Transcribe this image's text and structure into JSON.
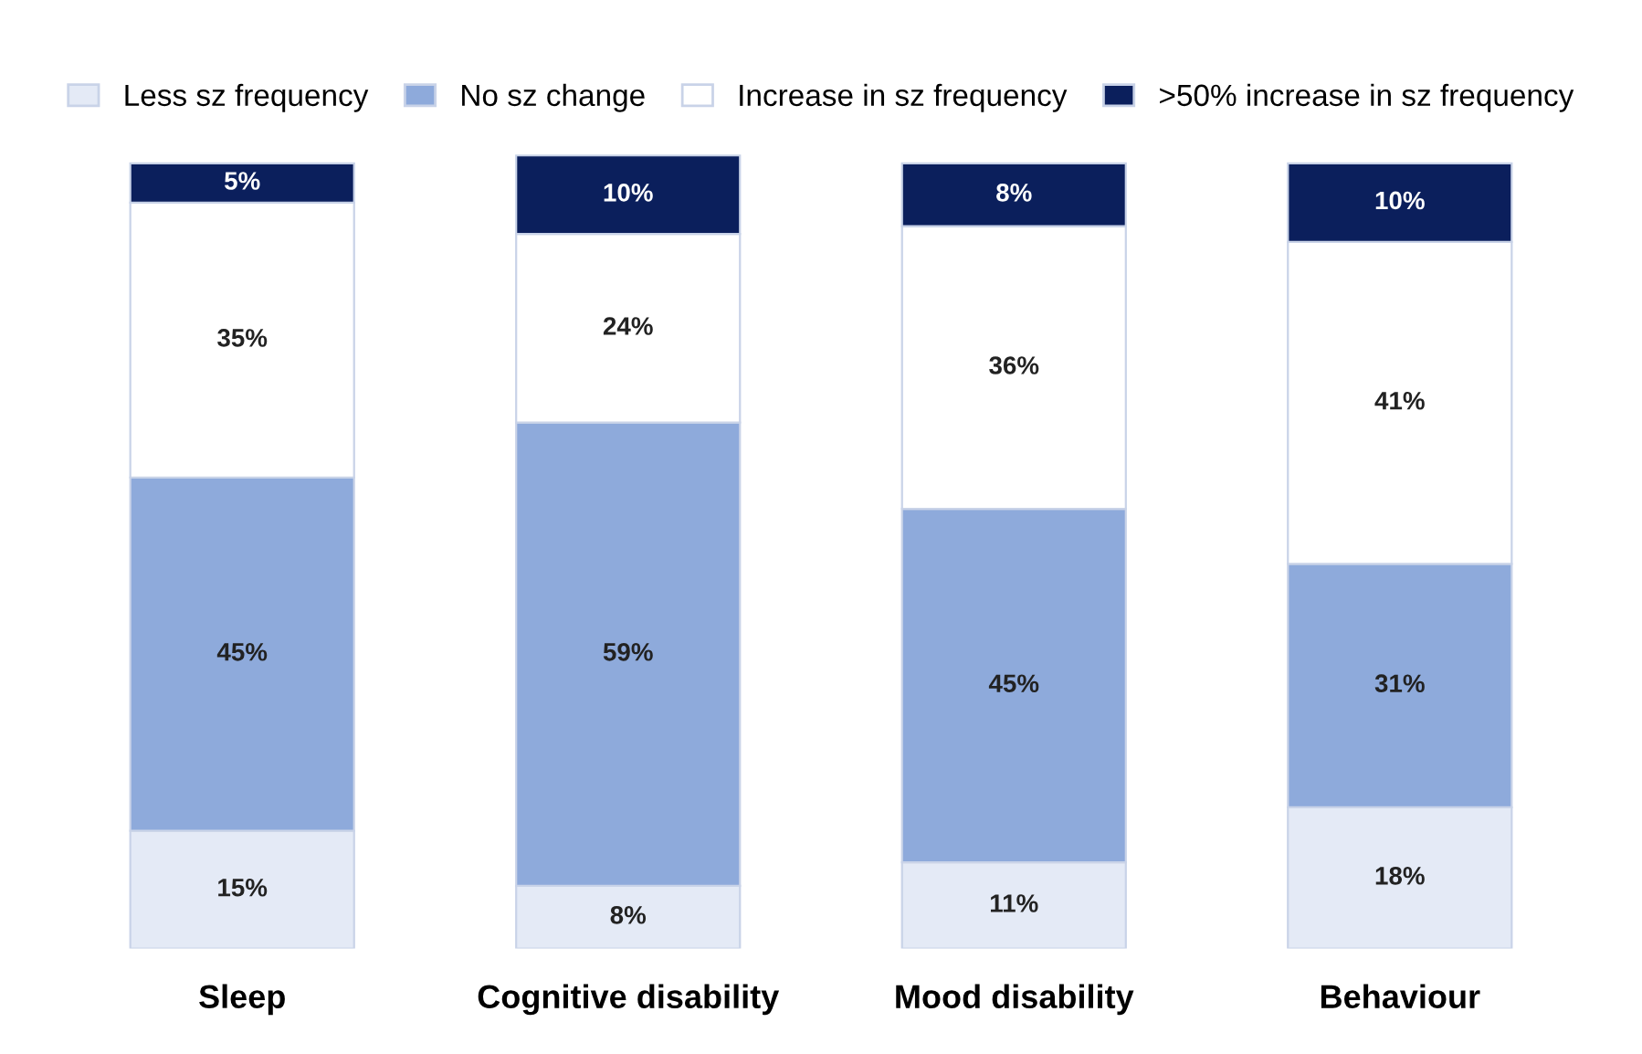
{
  "chart_data": {
    "type": "bar",
    "stacked": true,
    "legend": "top",
    "grid": false,
    "categories": [
      "Sleep",
      "Cognitive disability",
      "Mood disability",
      "Behaviour"
    ],
    "series": [
      {
        "name": "Less sz frequency",
        "color": "#e4eaf6",
        "values": [
          15,
          8,
          11,
          18
        ],
        "value_labels": [
          "15%",
          "8%",
          "11%",
          "18%"
        ]
      },
      {
        "name": "No sz change",
        "color": "#8eaadb",
        "values": [
          45,
          59,
          45,
          31
        ],
        "value_labels": [
          "45%",
          "59%",
          "45%",
          "31%"
        ]
      },
      {
        "name": "Increase in sz frequency",
        "color": "#ffffff",
        "values": [
          35,
          24,
          36,
          41
        ],
        "value_labels": [
          "35%",
          "24%",
          "36%",
          "41%"
        ]
      },
      {
        "name": ">50% increase in sz frequency",
        "color": "#0b1f5c",
        "values": [
          5,
          10,
          8,
          10
        ],
        "value_labels": [
          "5%",
          "10%",
          "8%",
          "10%"
        ]
      }
    ]
  }
}
